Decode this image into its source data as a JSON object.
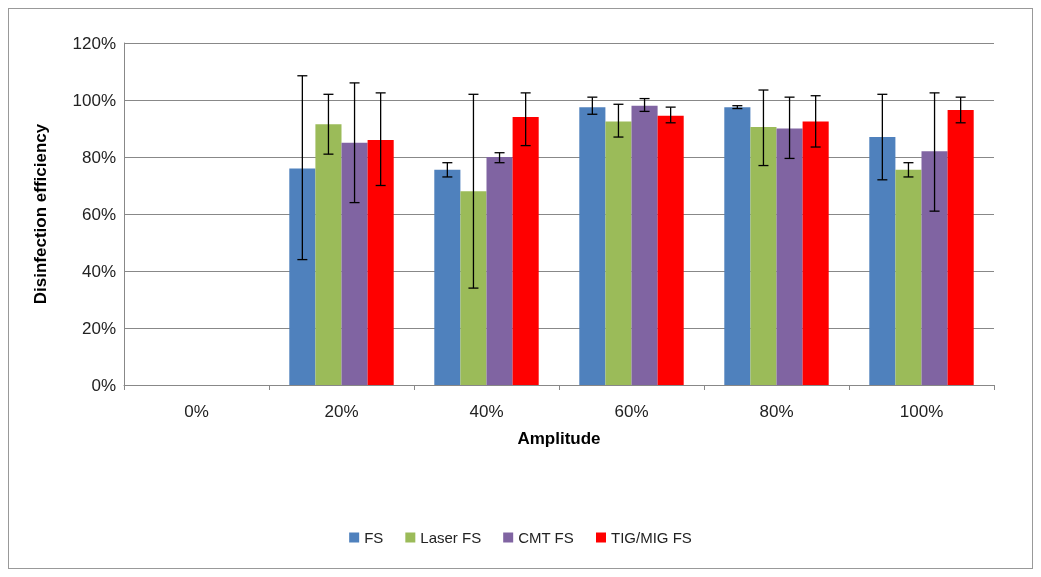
{
  "chart_data": {
    "type": "bar",
    "xlabel": "Amplitude",
    "ylabel": "Disinfection efficiency",
    "categories": [
      "0%",
      "20%",
      "40%",
      "60%",
      "80%",
      "100%"
    ],
    "series": [
      {
        "name": "FS",
        "color": "#4f81bd",
        "values": [
          null,
          76,
          75.5,
          97.5,
          97.5,
          87
        ],
        "errors": [
          null,
          [
            44,
            108.5
          ],
          [
            73,
            78
          ],
          [
            95,
            101
          ],
          [
            97,
            98
          ],
          [
            72,
            102
          ]
        ]
      },
      {
        "name": "Laser FS",
        "color": "#9bbb59",
        "values": [
          null,
          91.5,
          68,
          92.5,
          90.5,
          75.5
        ],
        "errors": [
          null,
          [
            81,
            102
          ],
          [
            34,
            102
          ],
          [
            87,
            98.5
          ],
          [
            77,
            103.5
          ],
          [
            73,
            78
          ]
        ]
      },
      {
        "name": "CMT FS",
        "color": "#8064a2",
        "values": [
          null,
          85,
          80,
          98,
          90,
          82
        ],
        "errors": [
          null,
          [
            64,
            106
          ],
          [
            78,
            81.5
          ],
          [
            96,
            100.5
          ],
          [
            79.5,
            101
          ],
          [
            61,
            102.5
          ]
        ]
      },
      {
        "name": "TIG/MIG FS",
        "color": "#ff0000",
        "values": [
          null,
          86,
          94,
          94.5,
          92.5,
          96.5
        ],
        "errors": [
          null,
          [
            70,
            102.5
          ],
          [
            84,
            102.5
          ],
          [
            92,
            97.5
          ],
          [
            83.5,
            101.5
          ],
          [
            92,
            101
          ]
        ]
      }
    ],
    "ylim": [
      0,
      120
    ],
    "yticks": [
      {
        "value": 0,
        "label": "0%"
      },
      {
        "value": 20,
        "label": "20%"
      },
      {
        "value": 40,
        "label": "40%"
      },
      {
        "value": 60,
        "label": "60%"
      },
      {
        "value": 80,
        "label": "80%"
      },
      {
        "value": 100,
        "label": "100%"
      },
      {
        "value": 120,
        "label": "120%"
      }
    ],
    "grid": "y",
    "legend": "bottom"
  }
}
